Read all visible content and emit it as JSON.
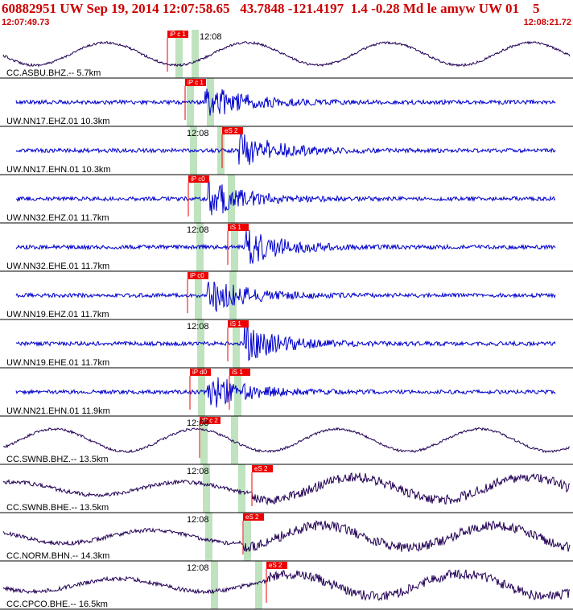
{
  "header": {
    "title": "60882951 UW Sep 19, 2014 12:07:58.65   43.7848 -121.4197  1.4 -0.28 Md le amyw UW 01    5",
    "start_time": "12:07:49.73",
    "end_time": "12:08:21.72"
  },
  "time_tick_label": "12:08",
  "colors": {
    "header_text": "#cc0000",
    "pick": "#ee0000",
    "window_band": "#bfe3bf",
    "trace_blue": "#0000cc",
    "trace_navy": "#220055",
    "baseline": "#cc3366"
  },
  "traces": [
    {
      "label": "CC.ASBU.BHZ.-- 5.7km",
      "pick": "iP c 1",
      "show_time": true
    },
    {
      "label": "UW.NN17.EHZ.01 10.3km",
      "pick": "iP c 1",
      "show_time": false
    },
    {
      "label": "UW.NN17.EHN.01 10.3km",
      "pick": "eS 2",
      "show_time": true
    },
    {
      "label": "UW.NN32.EHZ.01 11.7km",
      "pick": "iP c0",
      "show_time": false
    },
    {
      "label": "UW.NN32.EHE.01 11.7km",
      "pick": "iS 1",
      "show_time": true
    },
    {
      "label": "UW.NN19.EHZ.01 11.7km",
      "pick": "iP c0",
      "show_time": false
    },
    {
      "label": "UW.NN19.EHE.01 11.7km",
      "pick": "iS 1",
      "show_time": true
    },
    {
      "label": "UW.NN21.EHN.01 11.9km",
      "pick": "iP d0",
      "pick2": "iS 1",
      "show_time": false
    },
    {
      "label": "CC.SWNB.BHZ.-- 13.5km",
      "pick": "iP c 2",
      "show_time": true
    },
    {
      "label": "CC.SWNB.BHE.-- 13.5km",
      "pick": "eS 2",
      "show_time": true
    },
    {
      "label": "CC.NORM.BHN.-- 14.3km",
      "pick": "eS 2",
      "show_time": true
    },
    {
      "label": "CC.CPCO.BHE.-- 16.5km",
      "pick": "eS 2",
      "show_time": true
    }
  ]
}
